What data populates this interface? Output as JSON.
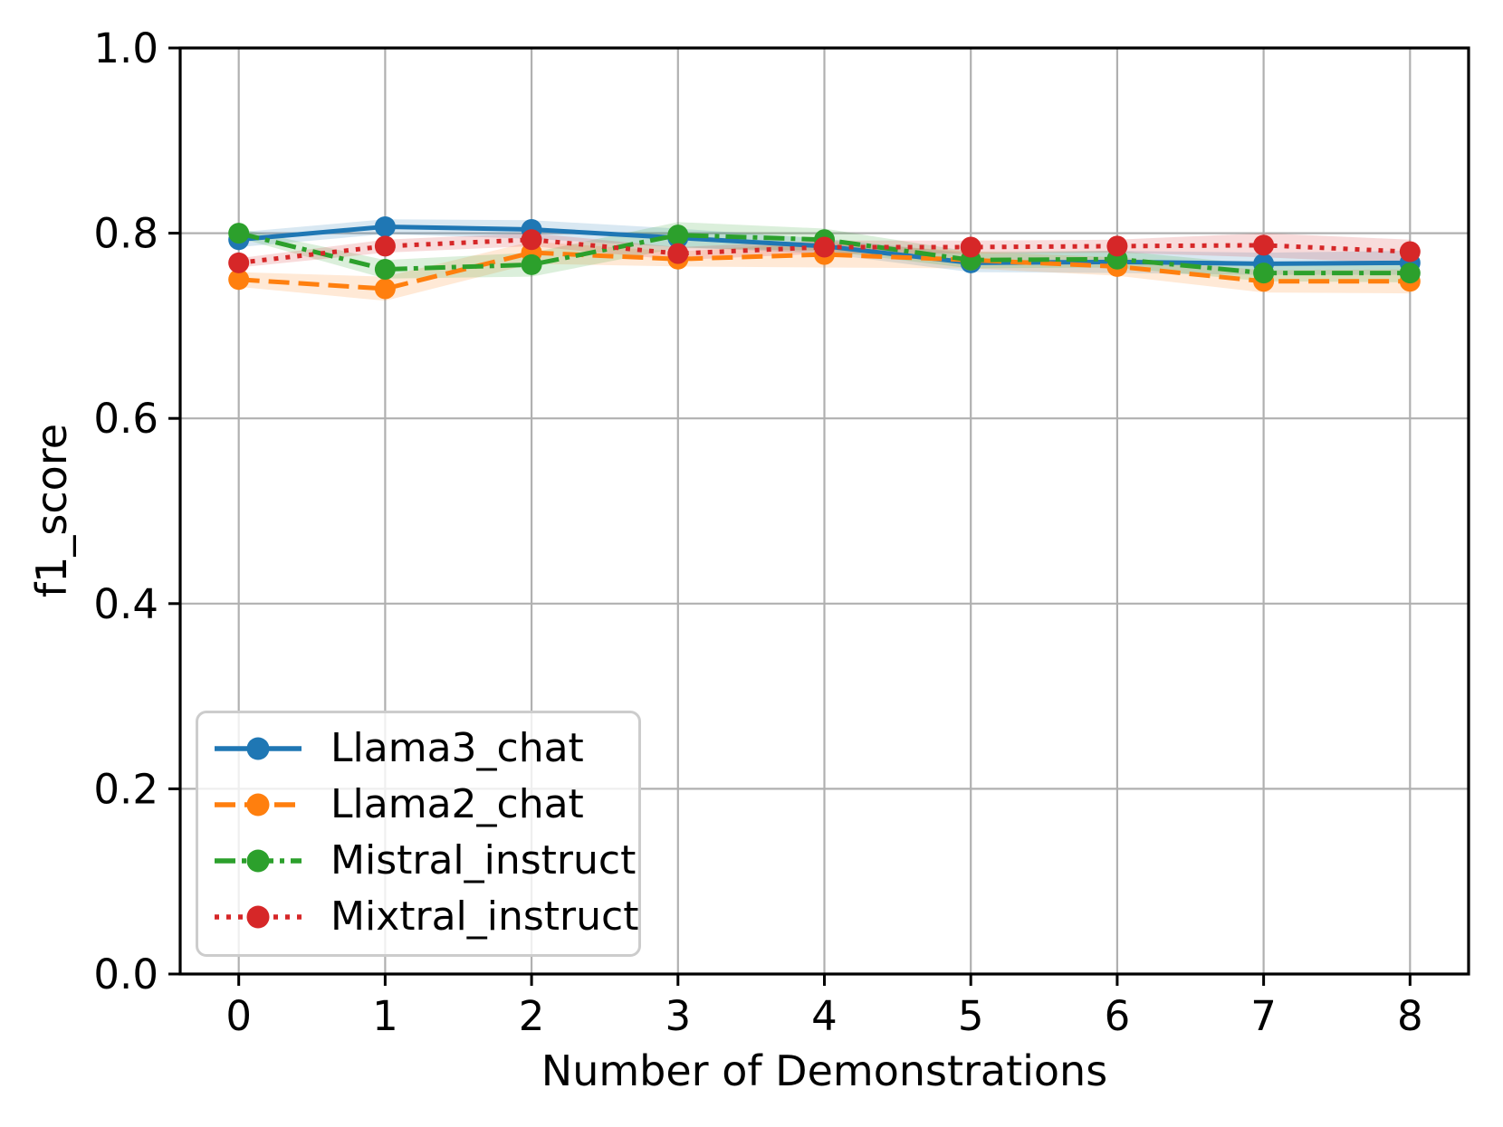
{
  "figure": {
    "background_color": "#ffffff",
    "grid_color": "#b0b0b0",
    "spine_color": "#000000",
    "tick_color": "#000000",
    "text_color": "#000000",
    "legend_border_color": "#cccccc"
  },
  "chart_data": {
    "type": "line",
    "title": "",
    "xlabel": "Number of Demonstrations",
    "ylabel": "f1_score",
    "x": [
      0,
      1,
      2,
      3,
      4,
      5,
      6,
      7,
      8
    ],
    "xtick_labels": [
      "0",
      "1",
      "2",
      "3",
      "4",
      "5",
      "6",
      "7",
      "8"
    ],
    "yticks": [
      0.0,
      0.2,
      0.4,
      0.6,
      0.8,
      1.0
    ],
    "ytick_labels": [
      "0.0",
      "0.2",
      "0.4",
      "0.6",
      "0.8",
      "1.0"
    ],
    "xlim": [
      -0.4,
      8.4
    ],
    "ylim": [
      0.0,
      1.0
    ],
    "grid": true,
    "legend_position": "lower left",
    "series": [
      {
        "name": "Llama3_chat",
        "color": "#1f77b4",
        "linestyle": "solid",
        "marker": "circle",
        "values": [
          0.793,
          0.807,
          0.804,
          0.795,
          0.786,
          0.768,
          0.769,
          0.767,
          0.768
        ],
        "band": [
          0.008,
          0.008,
          0.01,
          0.01,
          0.008,
          0.01,
          0.012,
          0.012,
          0.013
        ]
      },
      {
        "name": "Llama2_chat",
        "color": "#ff7f0e",
        "linestyle": "dashed",
        "marker": "circle",
        "values": [
          0.75,
          0.74,
          0.779,
          0.772,
          0.777,
          0.771,
          0.764,
          0.748,
          0.748
        ],
        "band": [
          0.008,
          0.013,
          0.012,
          0.008,
          0.014,
          0.009,
          0.01,
          0.012,
          0.013
        ]
      },
      {
        "name": "Mistral_instruct",
        "color": "#2ca02c",
        "linestyle": "dashdot",
        "marker": "circle",
        "values": [
          0.8,
          0.761,
          0.766,
          0.798,
          0.793,
          0.771,
          0.772,
          0.757,
          0.757
        ],
        "band": [
          0.005,
          0.01,
          0.013,
          0.014,
          0.012,
          0.009,
          0.009,
          0.009,
          0.01
        ]
      },
      {
        "name": "Mixtral_instruct",
        "color": "#d62728",
        "linestyle": "dotted",
        "marker": "circle",
        "values": [
          0.768,
          0.786,
          0.793,
          0.778,
          0.785,
          0.785,
          0.786,
          0.787,
          0.78
        ],
        "band": [
          0.005,
          0.007,
          0.007,
          0.007,
          0.007,
          0.007,
          0.007,
          0.013,
          0.013
        ]
      }
    ]
  }
}
